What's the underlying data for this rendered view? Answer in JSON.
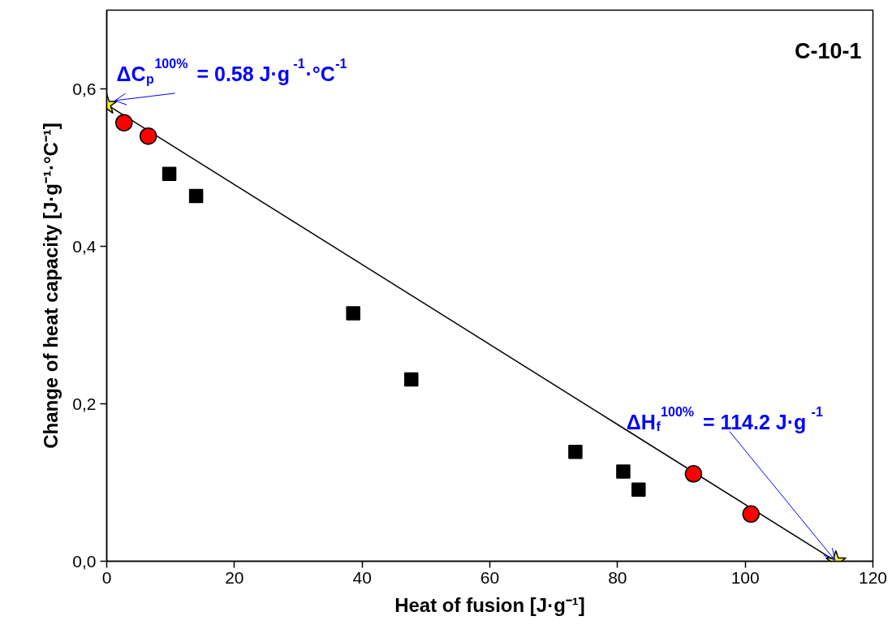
{
  "chart_data": {
    "type": "scatter",
    "xlabel": "Heat of fusion [J·g⁻¹]",
    "ylabel": "Change of heat capacity [J·g⁻¹·°C⁻¹]",
    "xlim": [
      0,
      120
    ],
    "ylim": [
      0,
      0.7
    ],
    "xticks": [
      0,
      20,
      40,
      60,
      80,
      100,
      120
    ],
    "yticks": [
      {
        "value": 0,
        "label": "0,0"
      },
      {
        "value": 0.2,
        "label": "0,2"
      },
      {
        "value": 0.4,
        "label": "0,4"
      },
      {
        "value": 0.6,
        "label": "0,6"
      }
    ],
    "grid": false,
    "series": [
      {
        "type": "line",
        "color": "#000000",
        "marker": "none",
        "line_style": "solid",
        "x": [
          0,
          114.2
        ],
        "values": [
          0.58,
          0
        ]
      },
      {
        "color": "#000000",
        "marker": "square",
        "x": [
          9.8,
          14.0,
          38.6,
          47.7,
          73.4,
          80.9,
          83.3
        ],
        "values": [
          0.492,
          0.464,
          0.315,
          0.231,
          0.139,
          0.114,
          0.091
        ]
      },
      {
        "color": "#ff0000",
        "marker": "circle",
        "x": [
          2.7,
          6.5,
          91.9,
          100.9
        ],
        "values": [
          0.557,
          0.54,
          0.111,
          0.06
        ]
      },
      {
        "color": "#ffff00",
        "marker": "star",
        "x": [
          0,
          114.2
        ],
        "values": [
          0.58,
          0
        ]
      }
    ],
    "annotations": [
      "C-10-1",
      {
        "text": "ΔC$_{p}$$^{100%}$ = 0.58 J·g$^{-1}$·°C$^{-1}$",
        "x": 0,
        "y": 0.58
      },
      {
        "text": "ΔH$_{f}$$^{100%}$ = 114.2 J·g$^{-1}$",
        "x": 114.2,
        "y": 0
      }
    ]
  }
}
